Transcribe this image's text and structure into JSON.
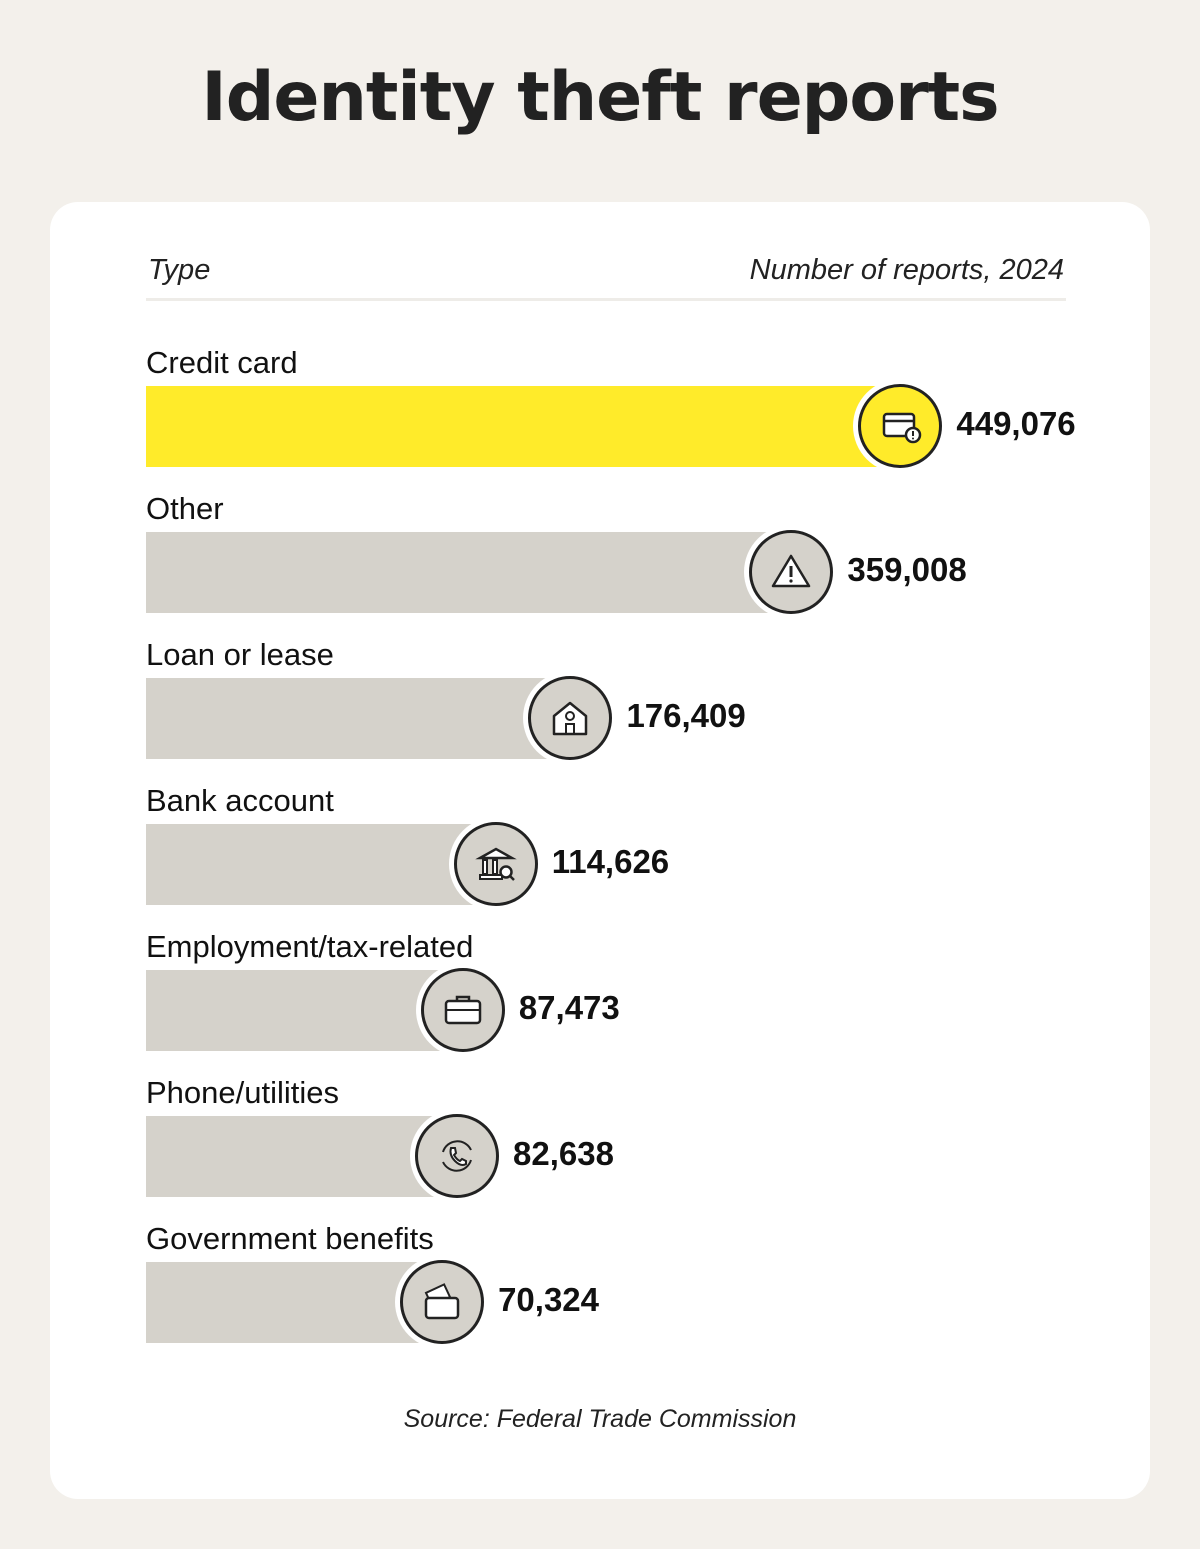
{
  "title": "Identity theft reports",
  "chart_data": {
    "type": "bar",
    "orientation": "horizontal",
    "title": "Identity theft reports",
    "xlabel": "Number of reports, 2024",
    "ylabel": "Type",
    "categories": [
      "Credit card",
      "Other",
      "Loan or lease",
      "Bank account",
      "Employment/tax-related",
      "Phone/utilities",
      "Government benefits"
    ],
    "values": [
      449076,
      359008,
      176409,
      114626,
      87473,
      82638,
      70324
    ],
    "value_labels": [
      "449,076",
      "359,008",
      "176,409",
      "114,626",
      "87,473",
      "82,638",
      "70,324"
    ],
    "icons": [
      "credit-card-alert-icon",
      "warning-icon",
      "house-icon",
      "bank-search-icon",
      "briefcase-icon",
      "phone-refresh-icon",
      "wallet-money-icon"
    ],
    "highlight_color": "#ffeb2a",
    "bar_color": "#d5d2cb",
    "grid": false
  },
  "header": {
    "type_label": "Type",
    "value_label": "Number of reports, 2024"
  },
  "source": "Source: Federal Trade Commission"
}
